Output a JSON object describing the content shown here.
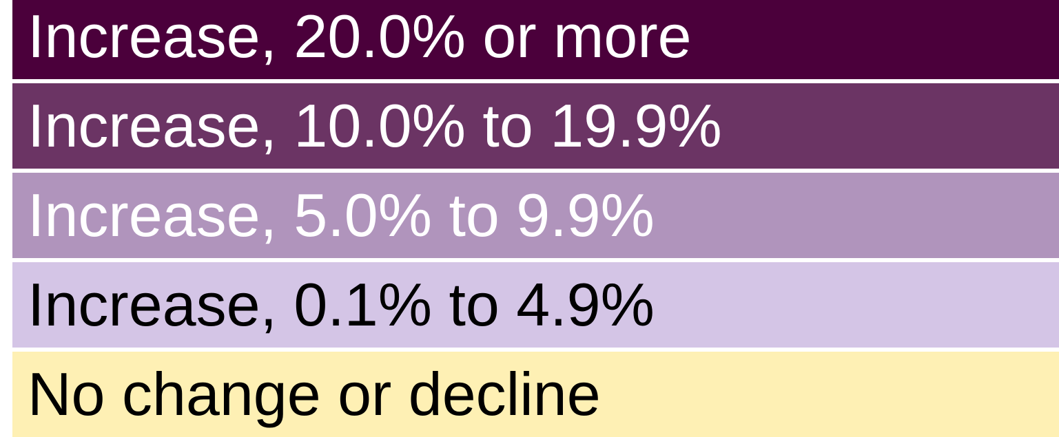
{
  "legend": {
    "items": [
      {
        "label": "Increase, 20.0% or more",
        "color": "#4b003b"
      },
      {
        "label": "Increase, 10.0% to 19.9%",
        "color": "#6b3464"
      },
      {
        "label": "Increase, 5.0% to 9.9%",
        "color": "#b094bc"
      },
      {
        "label": "Increase, 0.1% to 4.9%",
        "color": "#d4c5e6"
      },
      {
        "label": "No change or decline",
        "color": "#fef0b4"
      }
    ]
  }
}
